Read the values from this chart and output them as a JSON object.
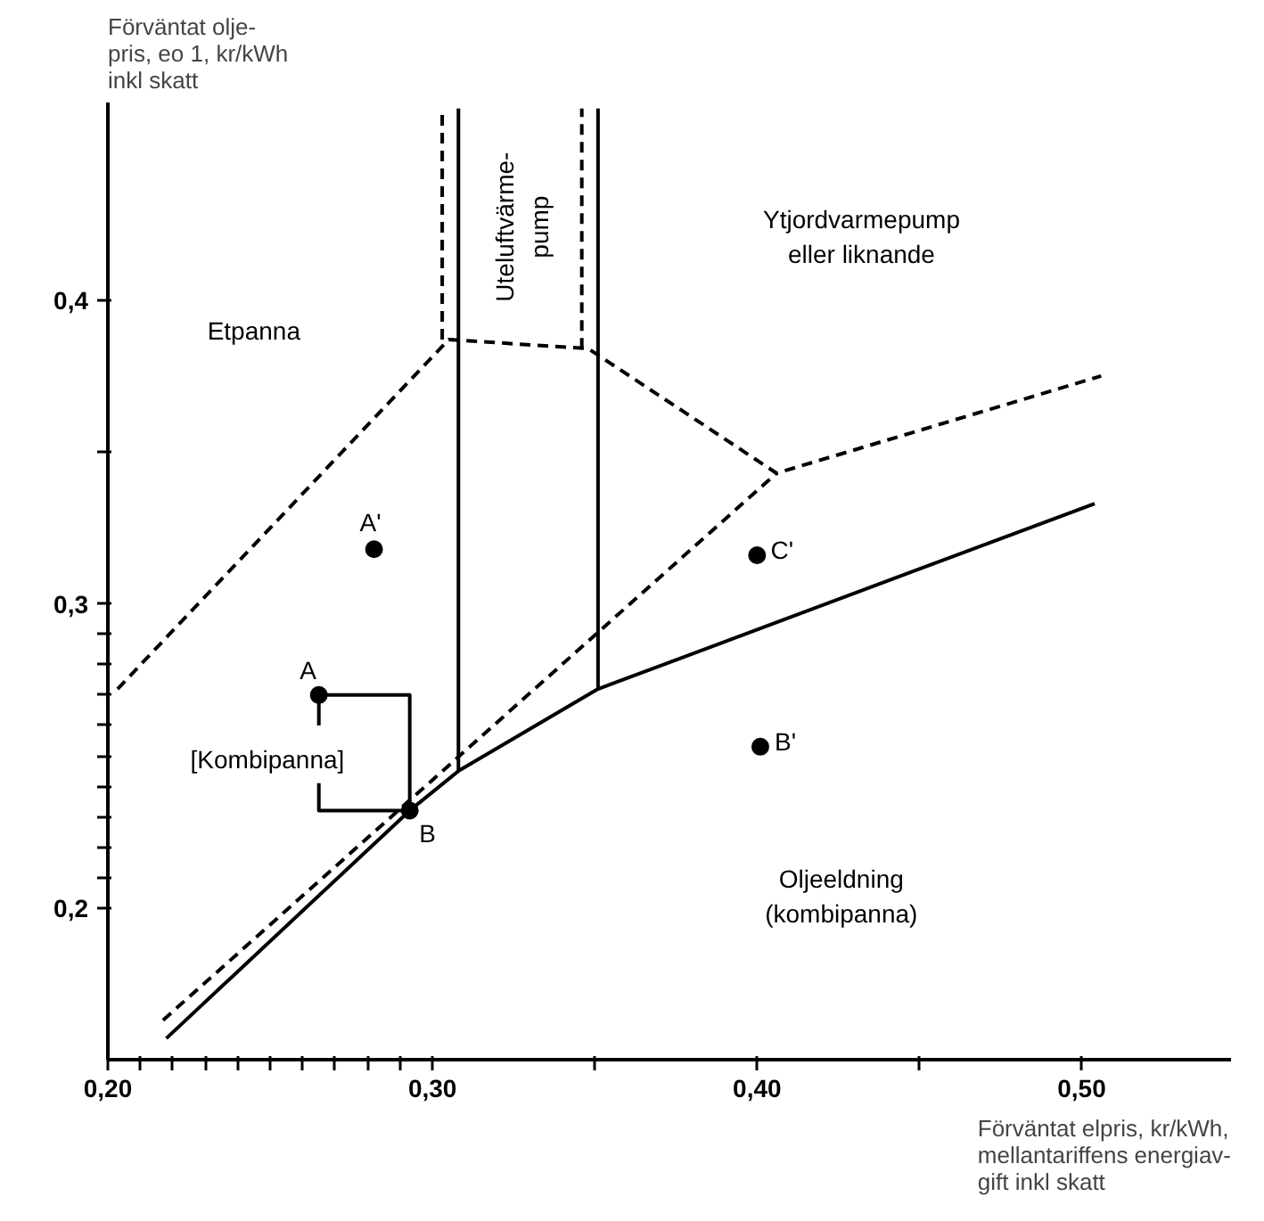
{
  "chart_data": {
    "type": "line",
    "xlabel": "Förväntat elpris, kr/kWh,\nmellantariffens energiav-\ngift inkl skatt",
    "ylabel": "Förväntat olje-\npris, eo 1, kr/kWh\ninkl skatt",
    "xlim": [
      0.2,
      0.546
    ],
    "ylim": [
      0.15,
      0.465
    ],
    "xticks": [
      {
        "value": 0.2,
        "label": "0,20"
      },
      {
        "value": 0.21,
        "label": null
      },
      {
        "value": 0.22,
        "label": null
      },
      {
        "value": 0.23,
        "label": null
      },
      {
        "value": 0.24,
        "label": null
      },
      {
        "value": 0.25,
        "label": null
      },
      {
        "value": 0.26,
        "label": null
      },
      {
        "value": 0.27,
        "label": null
      },
      {
        "value": 0.28,
        "label": null
      },
      {
        "value": 0.29,
        "label": null
      },
      {
        "value": 0.3,
        "label": "0,30"
      },
      {
        "value": 0.35,
        "label": null
      },
      {
        "value": 0.4,
        "label": "0,40"
      },
      {
        "value": 0.45,
        "label": null
      },
      {
        "value": 0.5,
        "label": "0,50"
      }
    ],
    "yticks": [
      {
        "value": 0.2,
        "label": "0,2"
      },
      {
        "value": 0.21,
        "label": null
      },
      {
        "value": 0.22,
        "label": null
      },
      {
        "value": 0.23,
        "label": null
      },
      {
        "value": 0.24,
        "label": null
      },
      {
        "value": 0.25,
        "label": null
      },
      {
        "value": 0.26,
        "label": null
      },
      {
        "value": 0.27,
        "label": null
      },
      {
        "value": 0.28,
        "label": null
      },
      {
        "value": 0.29,
        "label": null
      },
      {
        "value": 0.3,
        "label": "0,3"
      },
      {
        "value": 0.35,
        "label": null
      },
      {
        "value": 0.4,
        "label": "0,4"
      }
    ],
    "grid": false,
    "series": [
      {
        "line_style": "solid",
        "color": "#000000",
        "x": [
          0.218,
          0.293,
          0.308,
          0.351,
          0.504
        ],
        "values": [
          0.157,
          0.232,
          0.245,
          0.272,
          0.333
        ]
      },
      {
        "line_style": "dashed",
        "color": "#000000",
        "x": [
          0.217,
          0.406
        ],
        "values": [
          0.163,
          0.343
        ]
      },
      {
        "line_style": "dashed",
        "color": "#000000",
        "x": [
          0.203,
          0.305,
          0.348,
          0.406,
          0.506
        ],
        "values": [
          0.272,
          0.387,
          0.384,
          0.343,
          0.375
        ]
      },
      {
        "line_style": "solid",
        "color": "#000000",
        "x": [
          0.308,
          0.308
        ],
        "values": [
          0.245,
          0.463
        ]
      },
      {
        "line_style": "solid",
        "color": "#000000",
        "x": [
          0.351,
          0.351
        ],
        "values": [
          0.272,
          0.463
        ]
      },
      {
        "line_style": "dashed",
        "color": "#000000",
        "x": [
          0.303,
          0.303
        ],
        "values": [
          0.387,
          0.463
        ]
      },
      {
        "line_style": "dashed",
        "color": "#000000",
        "x": [
          0.346,
          0.346
        ],
        "values": [
          0.384,
          0.463
        ]
      },
      {
        "line_style": "solid",
        "color": "#000000",
        "x": [
          0.265,
          0.265,
          0.293,
          0.293,
          0.265,
          0.265
        ],
        "values": [
          0.26,
          0.27,
          0.27,
          0.232,
          0.232,
          0.241
        ]
      },
      {
        "type": "scatter",
        "marker": "circle",
        "color": "#000000",
        "x": [
          0.265,
          0.282,
          0.293,
          0.401,
          0.4
        ],
        "values": [
          0.27,
          0.318,
          0.232,
          0.253,
          0.316
        ],
        "value_labels": [
          "A",
          "A'",
          "B",
          "B'",
          "C'"
        ]
      }
    ],
    "annotations": [
      "Etpanna",
      "[Kombipanna]",
      "Uteluftvärme-",
      "pump",
      "Ytjordvarmepump\neller liknande",
      "Oljeeldning\n(kombipanna)"
    ]
  }
}
